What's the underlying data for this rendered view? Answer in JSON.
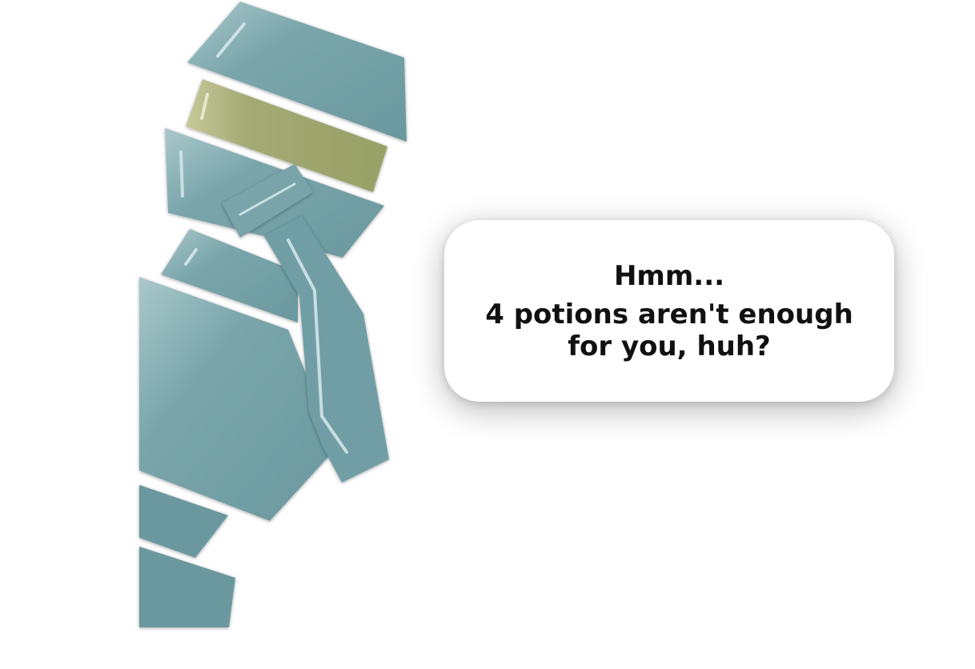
{
  "dialogue": {
    "line_1": "Hmm...",
    "line_2": "4 potions aren't enough",
    "line_3": "for you, huh?"
  },
  "colors": {
    "character_body": "#6c9ba1",
    "character_visor": "#9aa46a",
    "bubble": "#ffffff",
    "text": "#111111"
  },
  "icons": {
    "character": "robot-merchant-icon"
  }
}
